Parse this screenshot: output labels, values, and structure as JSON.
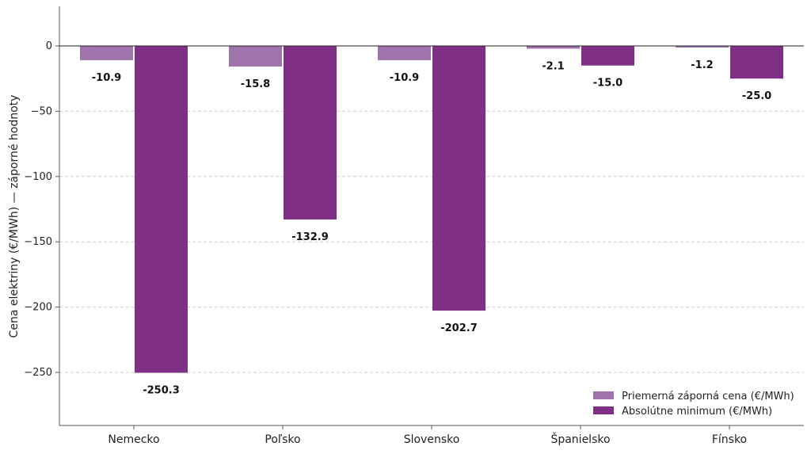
{
  "chart_data": {
    "type": "bar",
    "title": "",
    "xlabel": "",
    "ylabel": "Cena elektriny (€/MWh) — záporné hodnoty",
    "categories": [
      "Nemecko",
      "Poľsko",
      "Slovensko",
      "Španielsko",
      "Fínsko"
    ],
    "series": [
      {
        "name": "Priemerná záporná cena (€/MWh)",
        "color": "#a173ad",
        "values": [
          -10.9,
          -15.8,
          -10.9,
          -2.1,
          -1.2
        ]
      },
      {
        "name": "Absolútne minimum (€/MWh)",
        "color": "#7f2f85",
        "values": [
          -250.3,
          -132.9,
          -202.7,
          -15.0,
          -25.0
        ]
      }
    ],
    "data_labels": [
      [
        "-10.9",
        "-15.8",
        "-10.9",
        "-2.1",
        "-1.2"
      ],
      [
        "-250.3",
        "-132.9",
        "-202.7",
        "-15.0",
        "-25.0"
      ]
    ],
    "y_ticks": [
      0,
      -50,
      -100,
      -150,
      -200,
      -250
    ],
    "y_tick_labels": [
      "0",
      "−50",
      "−100",
      "−150",
      "−200",
      "−250"
    ],
    "ylim": [
      -290,
      30
    ],
    "grid": "horizontal dashed",
    "legend_position": "bottom-right"
  }
}
